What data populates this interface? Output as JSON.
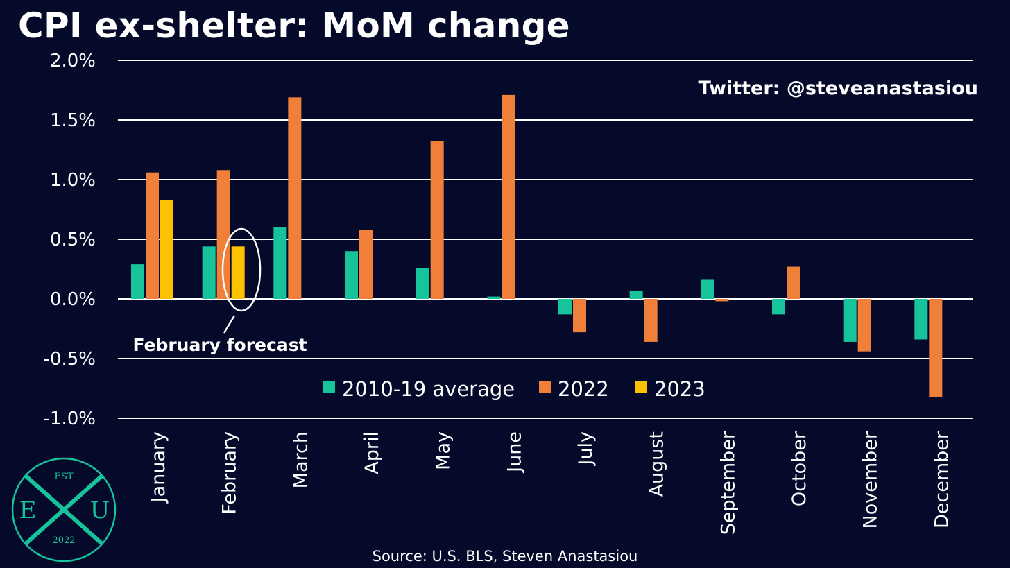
{
  "chart_data": {
    "type": "bar",
    "title": "CPI ex-shelter: MoM change",
    "categories": [
      "January",
      "February",
      "March",
      "April",
      "May",
      "June",
      "July",
      "August",
      "September",
      "October",
      "November",
      "December"
    ],
    "series": [
      {
        "name": "2010-19 average",
        "color": "#17c39a",
        "values": [
          0.29,
          0.44,
          0.6,
          0.4,
          0.26,
          0.02,
          -0.13,
          0.07,
          0.16,
          -0.13,
          -0.36,
          -0.34
        ]
      },
      {
        "name": "2022",
        "color": "#ef7f39",
        "values": [
          1.06,
          1.08,
          1.69,
          0.58,
          1.32,
          1.71,
          -0.28,
          -0.36,
          -0.02,
          0.27,
          -0.44,
          -0.82
        ]
      },
      {
        "name": "2023",
        "color": "#fcc100",
        "values": [
          0.83,
          0.44,
          null,
          null,
          null,
          null,
          null,
          null,
          null,
          null,
          null,
          null
        ]
      }
    ],
    "ylim": [
      -1.0,
      2.0
    ],
    "yticks": [
      "2.0%",
      "1.5%",
      "1.0%",
      "0.5%",
      "0.0%",
      "-0.5%",
      "-1.0%"
    ],
    "ytick_values": [
      2.0,
      1.5,
      1.0,
      0.5,
      0.0,
      -0.5,
      -1.0
    ],
    "grid": true,
    "legend": "bottom-center",
    "annotation": "February forecast",
    "watermark": "Twitter: @steveanastasiou",
    "source": "Source: U.S. BLS, Steven Anastasiou"
  },
  "logo": {
    "top": "EST",
    "left": "E",
    "right": "U",
    "bottom": "2022",
    "color": "#17c39a"
  }
}
